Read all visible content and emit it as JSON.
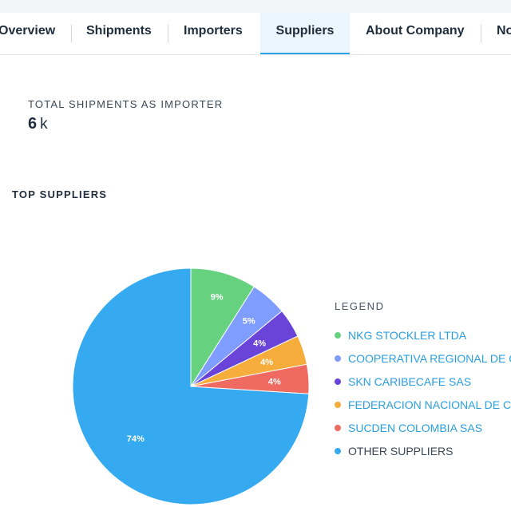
{
  "tabs": [
    {
      "label": "Overview",
      "active": false
    },
    {
      "label": "Shipments",
      "active": false
    },
    {
      "label": "Importers",
      "active": false
    },
    {
      "label": "Suppliers",
      "active": true
    },
    {
      "label": "About Company",
      "active": false
    },
    {
      "label": "No",
      "active": false
    }
  ],
  "stat": {
    "label": "TOTAL SHIPMENTS AS IMPORTER",
    "value": "6",
    "unit": "k"
  },
  "section": {
    "title": "TOP SUPPLIERS"
  },
  "legend": {
    "title": "LEGEND"
  },
  "chart_data": {
    "type": "pie",
    "categories": [
      "NKG STOCKLER LTDA",
      "COOPERATIVA REGIONAL DE CA",
      "SKN CARIBECAFE SAS",
      "FEDERACION NACIONAL DE CA",
      "SUCDEN COLOMBIA SAS",
      "OTHER SUPPLIERS"
    ],
    "values": [
      9,
      5,
      4,
      4,
      4,
      74
    ],
    "labels": [
      "9%",
      "5%",
      "4%",
      "4%",
      "4%",
      "74%"
    ],
    "colors": [
      "#66d17f",
      "#7f9cff",
      "#6a44d9",
      "#f6ad3c",
      "#ef6b61",
      "#35aaf0"
    ],
    "legend_placement": "right"
  }
}
